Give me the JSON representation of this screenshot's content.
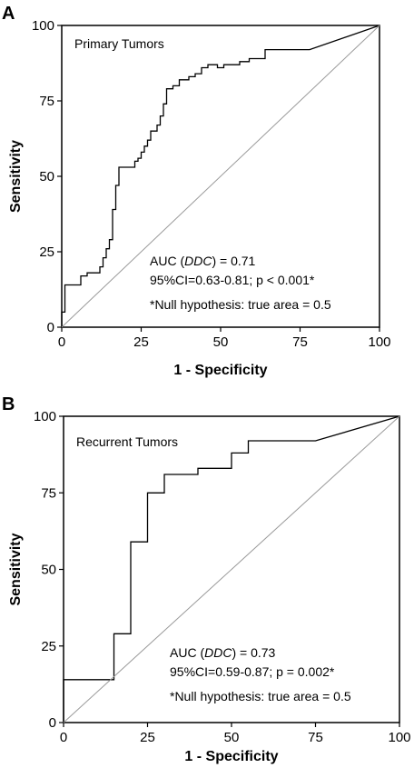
{
  "chart_data": [
    {
      "type": "line",
      "panel_label": "A",
      "title": "Primary Tumors",
      "xlabel": "1 - Specificity",
      "ylabel": "Sensitivity",
      "xlim": [
        0,
        100
      ],
      "ylim": [
        0,
        100
      ],
      "xticks": [
        "0",
        "25",
        "50",
        "75",
        "100"
      ],
      "yticks": [
        "0",
        "25",
        "50",
        "75",
        "100"
      ],
      "grid": false,
      "annotations": [
        {
          "parts": [
            {
              "t": "AUC ("
            },
            {
              "t": "DDC",
              "i": true
            },
            {
              "t": ") = 0.71"
            }
          ]
        },
        {
          "parts": [
            {
              "t": "95%CI=0.63-0.81; p < 0.001*"
            }
          ]
        },
        {
          "parts": [
            {
              "t": "*Null hypothesis: true area = 0.5"
            }
          ]
        }
      ],
      "series": [
        {
          "kind": "roc-step",
          "x": [
            0,
            0,
            1,
            1,
            6,
            6,
            8,
            8,
            12,
            12,
            13,
            13,
            14,
            14,
            15,
            15,
            16,
            16,
            17,
            17,
            18,
            18,
            23,
            23,
            24,
            24,
            25,
            25,
            26,
            26,
            27,
            27,
            28,
            28,
            30,
            30,
            31,
            31,
            32,
            32,
            33,
            33,
            35,
            35,
            37,
            37,
            40,
            40,
            42,
            42,
            44,
            44,
            46,
            46,
            49,
            49,
            51,
            51,
            56,
            56,
            59,
            59,
            64,
            64,
            65,
            65,
            78,
            100
          ],
          "y": [
            0,
            5,
            5,
            14,
            14,
            17,
            17,
            18,
            18,
            20,
            20,
            23,
            23,
            26,
            26,
            29,
            29,
            39,
            39,
            47,
            47,
            53,
            53,
            55,
            55,
            56,
            56,
            58,
            58,
            60,
            60,
            62,
            62,
            65,
            65,
            67,
            67,
            70,
            70,
            74,
            74,
            79,
            79,
            80,
            80,
            82,
            82,
            83,
            83,
            84,
            84,
            86,
            86,
            87,
            87,
            86,
            86,
            87,
            87,
            88,
            88,
            89,
            89,
            92,
            92,
            92,
            92,
            100
          ]
        },
        {
          "kind": "reference-diagonal",
          "x": [
            0,
            100
          ],
          "y": [
            0,
            100
          ]
        }
      ]
    },
    {
      "type": "line",
      "panel_label": "B",
      "title": "Recurrent Tumors",
      "xlabel": "1 - Specificity",
      "ylabel": "Sensitivity",
      "xlim": [
        0,
        100
      ],
      "ylim": [
        0,
        100
      ],
      "xticks": [
        "0",
        "25",
        "50",
        "75",
        "100"
      ],
      "yticks": [
        "0",
        "25",
        "50",
        "75",
        "100"
      ],
      "grid": false,
      "annotations": [
        {
          "parts": [
            {
              "t": "AUC ("
            },
            {
              "t": "DDC",
              "i": true
            },
            {
              "t": ") = 0.73"
            }
          ]
        },
        {
          "parts": [
            {
              "t": "95%CI=0.59-0.87; p = 0.002*"
            }
          ]
        },
        {
          "parts": [
            {
              "t": "*Null hypothesis: true area = 0.5"
            }
          ]
        }
      ],
      "series": [
        {
          "kind": "roc-step",
          "x": [
            0,
            0,
            15,
            15,
            20,
            20,
            25,
            25,
            30,
            30,
            40,
            40,
            50,
            50,
            55,
            55,
            75,
            100
          ],
          "y": [
            0,
            14,
            14,
            29,
            29,
            59,
            59,
            75,
            75,
            81,
            81,
            83,
            83,
            88,
            88,
            92,
            92,
            100
          ]
        },
        {
          "kind": "reference-diagonal",
          "x": [
            0,
            100
          ],
          "y": [
            0,
            100
          ]
        }
      ]
    }
  ]
}
